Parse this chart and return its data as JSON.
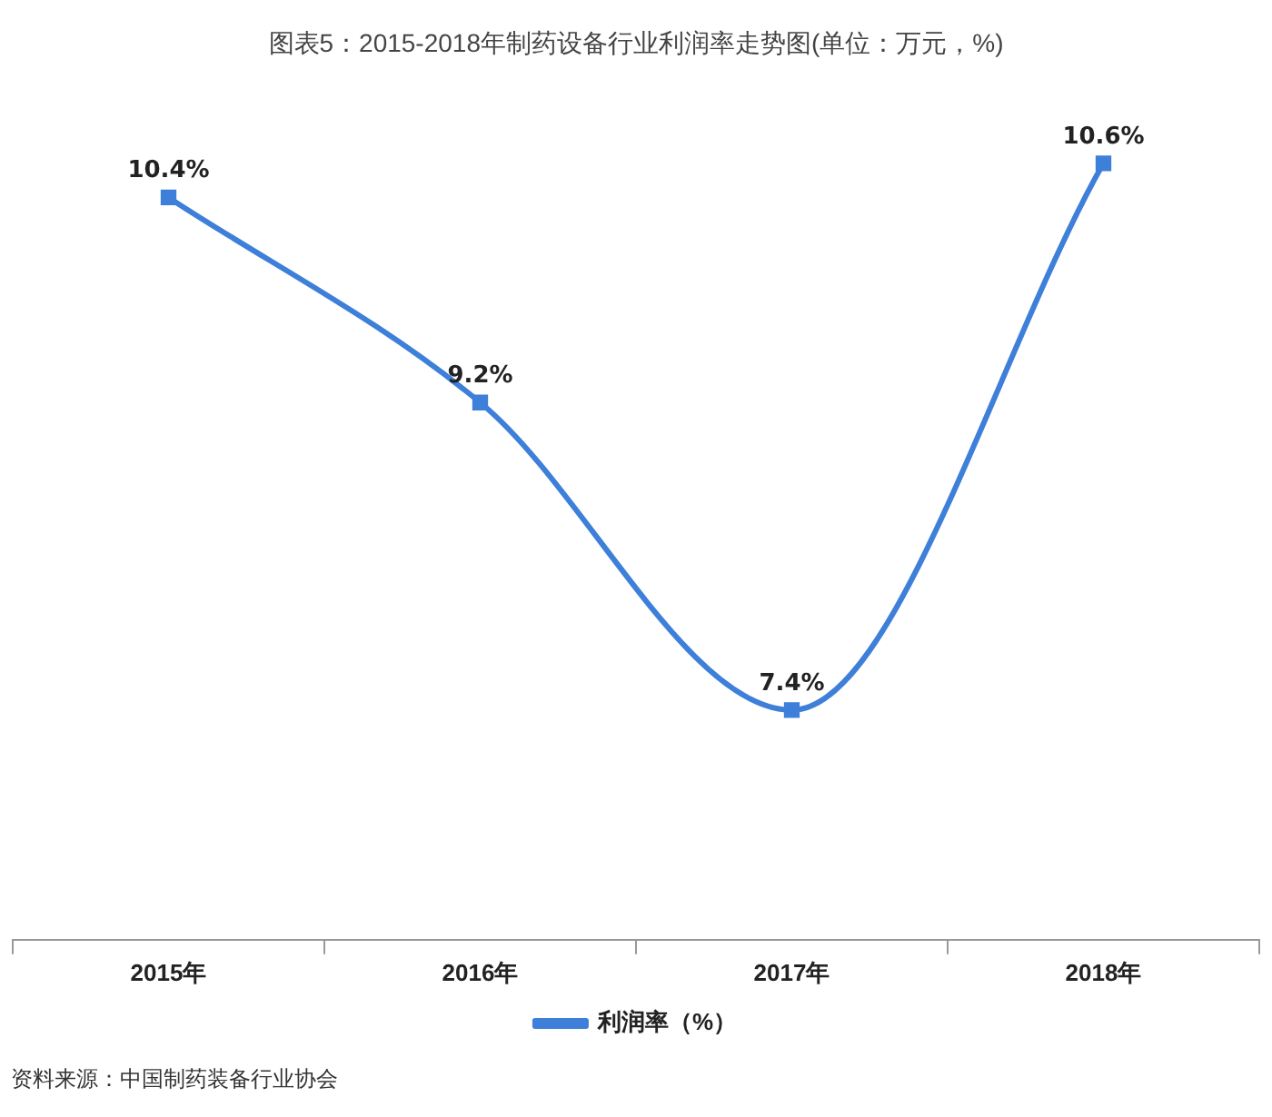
{
  "chart_data": {
    "type": "line",
    "title": "图表5：2015-2018年制药设备行业利润率走势图(单位：万元，%)",
    "categories": [
      "2015年",
      "2016年",
      "2017年",
      "2018年"
    ],
    "series": [
      {
        "name": "利润率（%）",
        "color": "#3d7fd9",
        "values": [
          10.4,
          9.2,
          7.4,
          10.6
        ],
        "value_labels": [
          "10.4%",
          "9.2%",
          "7.4%",
          "10.6%"
        ]
      }
    ],
    "marker": "square",
    "grid": false,
    "legend": "bottom",
    "annotations": [
      "资料来源：中国制药装备行业协会"
    ]
  }
}
